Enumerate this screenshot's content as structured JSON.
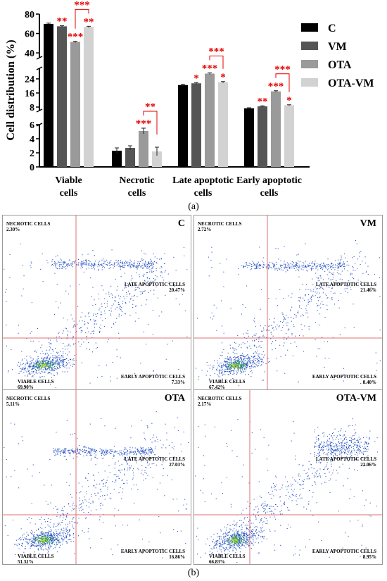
{
  "colors": {
    "series": [
      "#000000",
      "#555555",
      "#9a9a9a",
      "#d2d2d2"
    ],
    "significance": "#e60000",
    "bracket": "#e60000",
    "gate": "#e07070",
    "frame": "#999999",
    "dots": "#2b54c8"
  },
  "chart_data": {
    "type": "bar",
    "ylabel": "Cell distribution (%)",
    "axis_breaks": true,
    "segments": [
      {
        "range": [
          0,
          6
        ],
        "ticks": [
          0,
          2,
          4,
          6
        ]
      },
      {
        "range": [
          6,
          30
        ],
        "ticks": [
          8,
          16,
          24
        ]
      },
      {
        "range": [
          35,
          80
        ],
        "ticks": [
          40,
          60,
          80
        ]
      }
    ],
    "categories": [
      {
        "lines": [
          "Viable",
          "cells"
        ]
      },
      {
        "lines": [
          "Necrotic",
          "cells"
        ]
      },
      {
        "lines": [
          "Late apoptotic",
          "cells"
        ]
      },
      {
        "lines": [
          "Early apoptotic",
          "cells"
        ]
      }
    ],
    "series": [
      {
        "name": "C",
        "values": [
          69.9,
          2.3,
          20.5,
          7.3
        ],
        "errors": [
          0.8,
          0.4,
          0.5,
          0.3
        ]
      },
      {
        "name": "VM",
        "values": [
          67.4,
          2.7,
          21.5,
          8.4
        ],
        "errors": [
          0.6,
          0.3,
          0.4,
          0.3
        ]
      },
      {
        "name": "OTA",
        "values": [
          51.3,
          5.1,
          27.0,
          16.9
        ],
        "errors": [
          0.7,
          0.4,
          0.4,
          0.4
        ]
      },
      {
        "name": "OTA-VM",
        "values": [
          66.8,
          2.2,
          22.1,
          9.0
        ],
        "errors": [
          0.6,
          0.6,
          0.4,
          0.3
        ]
      }
    ],
    "significance": [
      [
        "",
        "**",
        "***",
        "**"
      ],
      [
        "",
        "",
        "***",
        ""
      ],
      [
        "",
        "*",
        "***",
        "*"
      ],
      [
        "",
        "**",
        "***",
        "*"
      ]
    ],
    "brackets": [
      {
        "category": 0,
        "label": "***"
      },
      {
        "category": 1,
        "label": "**"
      },
      {
        "category": 2,
        "label": "***"
      },
      {
        "category": 3,
        "label": "***"
      }
    ]
  },
  "panel_a_label": "(a)",
  "panel_b_label": "(b)",
  "flow_panels": [
    {
      "id": "C",
      "necrotic_label": "NECROTIC CELLS",
      "necrotic_pct": "2.30%",
      "late_label": "LATE APOPTOTIC CELLS",
      "late_pct": "20.47%",
      "viable_label": "VIABLE CELLS",
      "viable_pct": "69.90%",
      "early_label": "EARLY APOPTOTIC CELLS",
      "early_pct": "7.33%"
    },
    {
      "id": "VM",
      "necrotic_label": "NECROTIC CELLS",
      "necrotic_pct": "2.72%",
      "late_label": "LATE APOPTOTIC CELLS",
      "late_pct": "21.46%",
      "viable_label": "VIABLE CELLS",
      "viable_pct": "67.42%",
      "early_label": "EARLY APOPTOTIC CELLS",
      "early_pct": "8.40%"
    },
    {
      "id": "OTA",
      "necrotic_label": "NECROTIC CELLS",
      "necrotic_pct": "5.11%",
      "late_label": "LATE APOPTOTIC CELLS",
      "late_pct": "27.03%",
      "viable_label": "VIABLE CELLS",
      "viable_pct": "51.31%",
      "early_label": "EARLY APOPTOTIC CELLS",
      "early_pct": "16.86%"
    },
    {
      "id": "OTA-VM",
      "necrotic_label": "NECROTIC CELLS",
      "necrotic_pct": "2.17%",
      "late_label": "LATE APOPTOTIC CELLS",
      "late_pct": "22.06%",
      "viable_label": "VIABLE CELLS",
      "viable_pct": "66.83%",
      "early_label": "EARLY APOPTOTIC CELLS",
      "early_pct": "8.95%"
    }
  ]
}
